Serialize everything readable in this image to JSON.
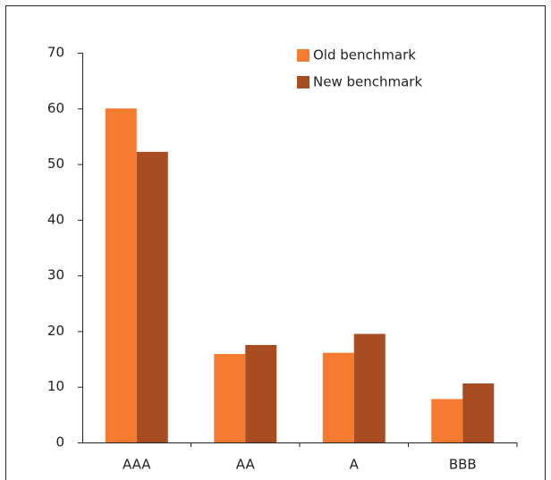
{
  "chart_data": {
    "type": "bar",
    "categories": [
      "AAA",
      "AA",
      "A",
      "BBB"
    ],
    "series": [
      {
        "name": "Old benchmark",
        "color": "#f47b30",
        "values": [
          60,
          15.9,
          16.1,
          7.8
        ]
      },
      {
        "name": "New benchmark",
        "color": "#a84d22",
        "values": [
          52.2,
          17.5,
          19.5,
          10.6
        ]
      }
    ],
    "ylim": [
      0,
      70
    ],
    "yticks": [
      0,
      10,
      20,
      30,
      40,
      50,
      60,
      70
    ],
    "grid": false,
    "legend": "top-right"
  }
}
